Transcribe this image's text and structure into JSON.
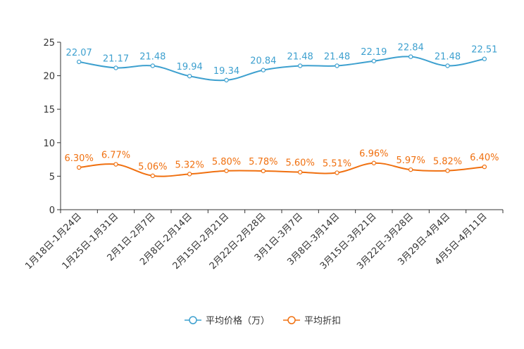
{
  "chart_data": {
    "type": "line",
    "title": "",
    "xlabel": "",
    "ylabel": "",
    "ylim": [
      0,
      25
    ],
    "yticks": [
      0,
      5,
      10,
      15,
      20,
      25
    ],
    "grid": false,
    "legend": "bottom-center",
    "categories": [
      "1月18日-1月24日",
      "1月25日-1月31日",
      "2月1日-2月7日",
      "2月8日-2月14日",
      "2月15日-2月21日",
      "2月22日-2月28日",
      "3月1日-3月7日",
      "3月8日-3月14日",
      "3月15日-3月21日",
      "3月22日-3月28日",
      "3月29日-4月4日",
      "4月5日-4月11日"
    ],
    "series": [
      {
        "name": "平均价格（万）",
        "color": "#3da0cf",
        "values": [
          22.07,
          21.17,
          21.48,
          19.94,
          19.34,
          20.84,
          21.48,
          21.48,
          22.19,
          22.84,
          21.48,
          22.51
        ],
        "labels": [
          "22.07",
          "21.17",
          "21.48",
          "19.94",
          "19.34",
          "20.84",
          "21.48",
          "21.48",
          "22.19",
          "22.84",
          "21.48",
          "22.51"
        ]
      },
      {
        "name": "平均折扣",
        "color": "#f07010",
        "values": [
          6.3,
          6.77,
          5.06,
          5.32,
          5.8,
          5.78,
          5.6,
          5.51,
          6.96,
          5.97,
          5.82,
          6.4
        ],
        "labels": [
          "6.30%",
          "6.77%",
          "5.06%",
          "5.32%",
          "5.80%",
          "5.78%",
          "5.60%",
          "5.51%",
          "6.96%",
          "5.97%",
          "5.82%",
          "6.40%"
        ]
      }
    ]
  }
}
